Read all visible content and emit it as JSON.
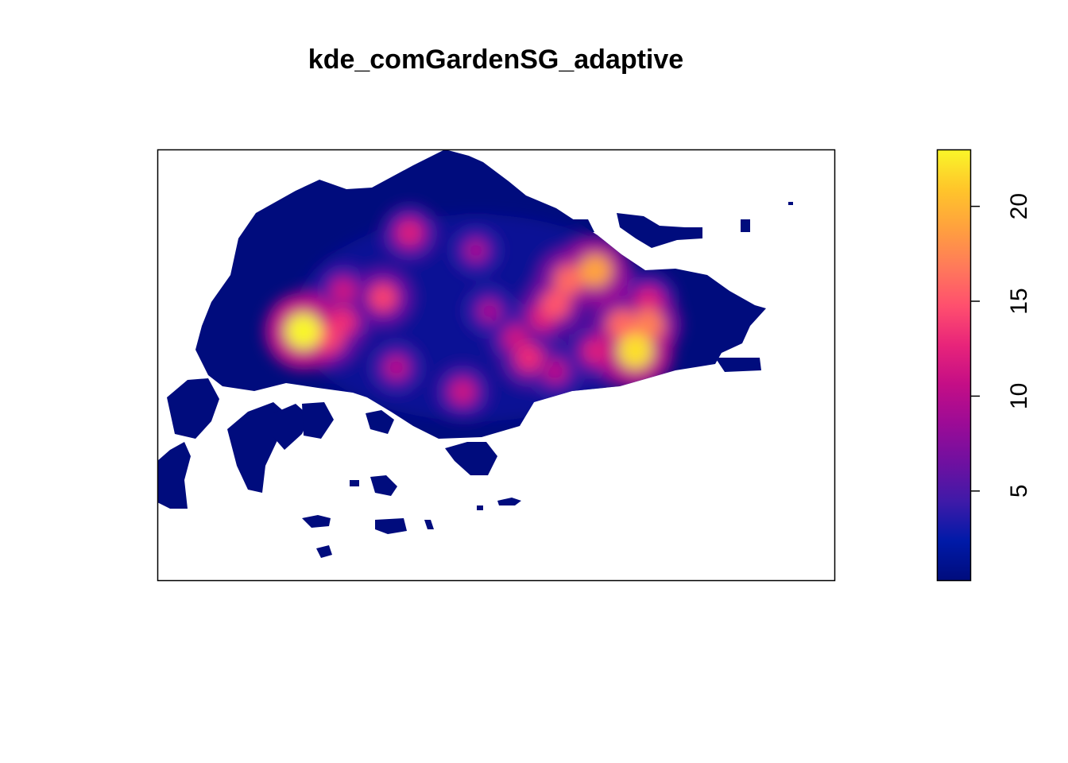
{
  "chart_data": {
    "type": "heatmap",
    "title": "kde_comGardenSG_adaptive",
    "subtitle": "",
    "xlabel": "",
    "ylabel": "",
    "legend_position": "right",
    "colorbar": {
      "min": 0.3,
      "max": 23,
      "ticks": [
        5,
        10,
        15,
        20
      ],
      "tick_labels": [
        "5",
        "10",
        "15",
        "20"
      ],
      "palette": [
        "#000C7D",
        "#001AA8",
        "#3E1AA8",
        "#6F10A0",
        "#9C0B96",
        "#C40E86",
        "#E8247A",
        "#FF4F6E",
        "#FF7A5A",
        "#FFA13E",
        "#FFC62A",
        "#F9F629"
      ]
    },
    "hotspots": [
      {
        "lon": 103.7,
        "lat": 1.345,
        "value": 23
      },
      {
        "lon": 103.72,
        "lat": 1.34,
        "value": 14
      },
      {
        "lon": 103.73,
        "lat": 1.352,
        "value": 13
      },
      {
        "lon": 103.73,
        "lat": 1.375,
        "value": 11
      },
      {
        "lon": 103.76,
        "lat": 1.37,
        "value": 14
      },
      {
        "lon": 103.78,
        "lat": 1.418,
        "value": 12
      },
      {
        "lon": 103.83,
        "lat": 1.405,
        "value": 9
      },
      {
        "lon": 103.77,
        "lat": 1.318,
        "value": 10
      },
      {
        "lon": 103.82,
        "lat": 1.3,
        "value": 11
      },
      {
        "lon": 103.84,
        "lat": 1.36,
        "value": 9
      },
      {
        "lon": 103.87,
        "lat": 1.325,
        "value": 13
      },
      {
        "lon": 103.88,
        "lat": 1.355,
        "value": 12
      },
      {
        "lon": 103.89,
        "lat": 1.365,
        "value": 15
      },
      {
        "lon": 103.9,
        "lat": 1.383,
        "value": 16
      },
      {
        "lon": 103.92,
        "lat": 1.39,
        "value": 19
      },
      {
        "lon": 103.86,
        "lat": 1.34,
        "value": 11
      },
      {
        "lon": 103.89,
        "lat": 1.315,
        "value": 10
      },
      {
        "lon": 103.92,
        "lat": 1.33,
        "value": 12
      },
      {
        "lon": 103.95,
        "lat": 1.33,
        "value": 22
      },
      {
        "lon": 103.94,
        "lat": 1.35,
        "value": 16
      },
      {
        "lon": 103.96,
        "lat": 1.35,
        "value": 17
      },
      {
        "lon": 103.96,
        "lat": 1.368,
        "value": 12
      }
    ]
  }
}
